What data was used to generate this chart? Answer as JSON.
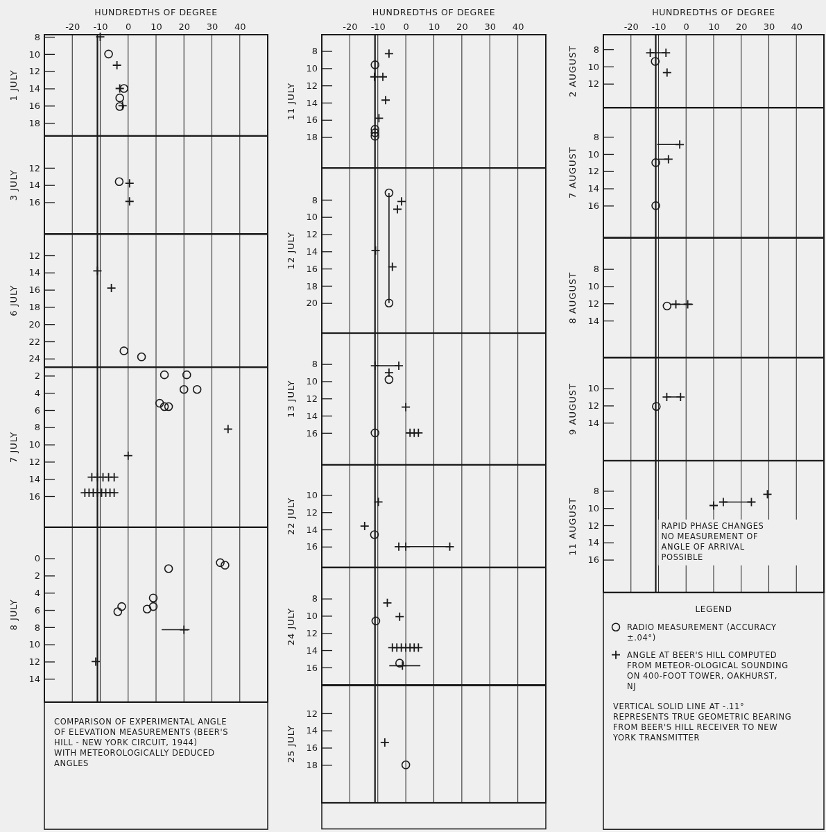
{
  "chart_data": [
    {
      "type": "scatter",
      "ylabel": "1 JULY",
      "xlim": [
        -30,
        50
      ],
      "xticks": [
        -20,
        -10,
        0,
        10,
        20,
        30,
        40
      ],
      "xlabel": "HUNDREDTHS OF DEGREE",
      "ylim": [
        19.5,
        7.75
      ],
      "yticks": [
        8,
        10,
        12,
        14,
        16,
        18
      ],
      "grid": "x",
      "ref_lines": [
        {
          "axis": "x",
          "value": -11,
          "color": "#1a1a1a"
        }
      ],
      "series": [
        {
          "marker": "circle",
          "color": "#1a1a1a",
          "x": [
            -7,
            -1.5,
            -3,
            -3
          ],
          "values": [
            10,
            14,
            15.1,
            16.1
          ]
        },
        {
          "marker": "cross",
          "color": "#1a1a1a",
          "x": [
            -10,
            -4,
            -3,
            -2
          ],
          "values": [
            8,
            11.3,
            14,
            16
          ]
        }
      ]
    },
    {
      "type": "scatter",
      "ylabel": "3 JULY",
      "xlim": [
        -30,
        50
      ],
      "tick_labels": "y",
      "xticks": [
        {
          "value": -20,
          "label": null
        },
        {
          "value": -10,
          "label": null
        },
        {
          "value": 0,
          "label": null
        },
        {
          "value": 10,
          "label": null
        },
        {
          "value": 20,
          "label": null
        },
        {
          "value": 30,
          "label": null
        },
        {
          "value": 40,
          "label": null
        }
      ],
      "ylim": [
        19.7,
        8.3
      ],
      "yticks": [
        12,
        14,
        16
      ],
      "grid": "x",
      "ref_lines": [
        {
          "axis": "x",
          "value": -11,
          "color": "#1a1a1a"
        }
      ],
      "series": [
        {
          "marker": "circle",
          "color": "#1a1a1a",
          "x": [
            -3.2
          ],
          "values": [
            13.6
          ]
        },
        {
          "marker": "cross",
          "color": "#1a1a1a",
          "x": [
            0.5,
            0.5
          ],
          "values": [
            13.8,
            15.9
          ]
        }
      ]
    },
    {
      "type": "scatter",
      "ylabel": "6 JULY",
      "xlim": [
        -30,
        50
      ],
      "tick_labels": "y",
      "xticks": [
        {
          "value": -20,
          "label": null
        },
        {
          "value": -10,
          "label": null
        },
        {
          "value": 0,
          "label": null
        },
        {
          "value": 10,
          "label": null
        },
        {
          "value": 20,
          "label": null
        },
        {
          "value": 30,
          "label": null
        },
        {
          "value": 40,
          "label": null
        }
      ],
      "ylim": [
        25,
        9.5
      ],
      "yticks": [
        12,
        14,
        16,
        18,
        20,
        22,
        24
      ],
      "grid": "x",
      "ref_lines": [
        {
          "axis": "x",
          "value": -11,
          "color": "#1a1a1a"
        }
      ],
      "series": [
        {
          "marker": "circle",
          "color": "#1a1a1a",
          "x": [
            -1.5,
            4.8
          ],
          "values": [
            23.1,
            23.8
          ]
        },
        {
          "marker": "cross",
          "color": "#1a1a1a",
          "x": [
            -11,
            -6
          ],
          "values": [
            13.8,
            15.8
          ]
        }
      ]
    },
    {
      "type": "scatter",
      "ylabel": "7 JULY",
      "xlim": [
        -30,
        50
      ],
      "tick_labels": "y",
      "xticks": [
        {
          "value": -20,
          "label": null
        },
        {
          "value": -10,
          "label": null
        },
        {
          "value": 0,
          "label": null
        },
        {
          "value": 10,
          "label": null
        },
        {
          "value": 20,
          "label": null
        },
        {
          "value": 30,
          "label": null
        },
        {
          "value": 40,
          "label": null
        }
      ],
      "ylim": [
        19.6,
        1
      ],
      "yticks": [
        2,
        4,
        6,
        8,
        10,
        12,
        14,
        16
      ],
      "grid": "x",
      "ref_lines": [
        {
          "axis": "x",
          "value": -11,
          "color": "#1a1a1a"
        }
      ],
      "series": [
        {
          "marker": "circle",
          "color": "#1a1a1a",
          "x": [
            13,
            21,
            20,
            24.7,
            11.3,
            13,
            14.5
          ],
          "values": [
            1.9,
            1.9,
            3.6,
            3.6,
            5.2,
            5.6,
            5.6
          ]
        },
        {
          "marker": "cross",
          "color": "#1a1a1a",
          "x": [
            35.8,
            0,
            -13,
            -11,
            -9,
            -7,
            -5,
            -15.5,
            -14,
            -12.5,
            -11,
            -9.5,
            -8,
            -6.5,
            -5
          ],
          "values": [
            8.2,
            11.3,
            13.8,
            13.8,
            13.8,
            13.8,
            13.8,
            15.6,
            15.6,
            15.6,
            15.6,
            15.6,
            15.6,
            15.6,
            15.6
          ]
        }
      ]
    },
    {
      "type": "scatter",
      "ylabel": "8 JULY",
      "xlim": [
        -30,
        50
      ],
      "tick_labels": "y",
      "xticks": [
        {
          "value": -20,
          "label": null
        },
        {
          "value": -10,
          "label": null
        },
        {
          "value": 0,
          "label": null
        },
        {
          "value": 10,
          "label": null
        },
        {
          "value": 20,
          "label": null
        },
        {
          "value": 30,
          "label": null
        },
        {
          "value": 40,
          "label": null
        }
      ],
      "ylim": [
        16.7,
        -3.6
      ],
      "yticks": [
        0,
        2,
        4,
        6,
        8,
        10,
        12,
        14
      ],
      "grid": "x",
      "ref_lines": [
        {
          "axis": "x",
          "value": -11,
          "color": "#1a1a1a"
        }
      ],
      "annotations": [
        "COMPARISON OF EXPERIMENTAL ANGLE OF ELEVATION MEASUREMENTS (BEER'S HILL - NEW YORK CIRCUIT, 1944) WITH METEOROLOGICALLY DEDUCED ANGLES"
      ],
      "series": [
        {
          "marker": "circle",
          "color": "#1a1a1a",
          "x": [
            33,
            34.7,
            14.5,
            9,
            9,
            6.8,
            -2.3,
            -3.7
          ],
          "values": [
            0.5,
            0.8,
            1.2,
            4.6,
            5.6,
            5.9,
            5.6,
            6.2
          ]
        },
        {
          "marker": "cross",
          "color": "#1a1a1a",
          "x": [
            20,
            -11.6
          ],
          "values": [
            8.3,
            12
          ],
          "xerrors": [
            [
              12,
              22
            ],
            null
          ]
        }
      ]
    },
    {
      "type": "scatter",
      "ylabel": "11 JULY",
      "xlim": [
        -30,
        50
      ],
      "xticks": [
        -20,
        -10,
        0,
        10,
        20,
        30,
        40
      ],
      "xlabel": "HUNDREDTHS OF DEGREE",
      "ylim": [
        21.6,
        6.1
      ],
      "yticks": [
        8,
        10,
        12,
        14,
        16,
        18
      ],
      "grid": "x",
      "ref_lines": [
        {
          "axis": "x",
          "value": -11,
          "color": "#1a1a1a"
        }
      ],
      "series": [
        {
          "marker": "circle",
          "color": "#1a1a1a",
          "x": [
            -11,
            -11,
            -11,
            -11
          ],
          "values": [
            9.6,
            17.1,
            17.5,
            17.9
          ]
        },
        {
          "marker": "cross",
          "color": "#1a1a1a",
          "x": [
            -6,
            -11.2,
            -8.2,
            -7.2,
            -9.6
          ],
          "values": [
            8.3,
            11,
            11,
            13.7,
            15.8
          ]
        }
      ]
    },
    {
      "type": "scatter",
      "ylabel": "12 JULY",
      "xlim": [
        -30,
        50
      ],
      "tick_labels": "y",
      "xticks": [
        {
          "value": -20,
          "label": null
        },
        {
          "value": -10,
          "label": null
        },
        {
          "value": 0,
          "label": null
        },
        {
          "value": 10,
          "label": null
        },
        {
          "value": 20,
          "label": null
        },
        {
          "value": 30,
          "label": null
        },
        {
          "value": 40,
          "label": null
        }
      ],
      "ylim": [
        23.5,
        4.3
      ],
      "yticks": [
        8,
        10,
        12,
        14,
        16,
        18,
        20
      ],
      "grid": "x",
      "ref_lines": [
        {
          "axis": "x",
          "value": -11,
          "color": "#1a1a1a"
        }
      ],
      "series": [
        {
          "type": "line",
          "marker": "none",
          "color": "#1a1a1a",
          "x": [
            -6,
            -6
          ],
          "values": [
            7.2,
            20
          ]
        },
        {
          "marker": "circle",
          "color": "#1a1a1a",
          "x": [
            -6,
            -6
          ],
          "values": [
            7.2,
            20
          ]
        },
        {
          "marker": "cross",
          "color": "#1a1a1a",
          "x": [
            -1.5,
            -3,
            -10.8,
            -4.8
          ],
          "values": [
            8.2,
            9.1,
            13.9,
            15.8
          ]
        }
      ]
    },
    {
      "type": "scatter",
      "ylabel": "13 JULY",
      "xlim": [
        -30,
        50
      ],
      "tick_labels": "y",
      "xticks": [
        {
          "value": -20,
          "label": null
        },
        {
          "value": -10,
          "label": null
        },
        {
          "value": 0,
          "label": null
        },
        {
          "value": 10,
          "label": null
        },
        {
          "value": 20,
          "label": null
        },
        {
          "value": 30,
          "label": null
        },
        {
          "value": 40,
          "label": null
        }
      ],
      "ylim": [
        19.7,
        4.4
      ],
      "yticks": [
        8,
        10,
        12,
        14,
        16
      ],
      "grid": "x",
      "ref_lines": [
        {
          "axis": "x",
          "value": -11,
          "color": "#1a1a1a"
        }
      ],
      "series": [
        {
          "marker": "circle",
          "color": "#1a1a1a",
          "x": [
            -6,
            -11
          ],
          "values": [
            9.8,
            16
          ]
        },
        {
          "marker": "cross",
          "color": "#1a1a1a",
          "x": [
            -11,
            -2.5,
            -6,
            0,
            1.5,
            3,
            4.5
          ],
          "values": [
            8.2,
            8.2,
            9,
            13,
            16,
            16,
            16
          ],
          "xerrors": [
            [
              -11,
              -2.5
            ],
            null,
            null,
            null,
            [
              0,
              4.5
            ],
            null,
            null
          ]
        }
      ]
    },
    {
      "type": "scatter",
      "ylabel": "22 JULY",
      "xlim": [
        -30,
        50
      ],
      "tick_labels": "y",
      "xticks": [
        {
          "value": -20,
          "label": null
        },
        {
          "value": -10,
          "label": null
        },
        {
          "value": 0,
          "label": null
        },
        {
          "value": 10,
          "label": null
        },
        {
          "value": 20,
          "label": null
        },
        {
          "value": 30,
          "label": null
        },
        {
          "value": 40,
          "label": null
        }
      ],
      "ylim": [
        18.4,
        6.5
      ],
      "yticks": [
        10,
        12,
        14,
        16
      ],
      "grid": "x",
      "ref_lines": [
        {
          "axis": "x",
          "value": -11,
          "color": "#1a1a1a"
        }
      ],
      "series": [
        {
          "marker": "circle",
          "color": "#1a1a1a",
          "x": [
            -11.2
          ],
          "values": [
            14.6
          ]
        },
        {
          "marker": "cross",
          "color": "#1a1a1a",
          "x": [
            -9.8,
            -14.7,
            -2.5,
            0,
            15.7
          ],
          "values": [
            10.8,
            13.6,
            16,
            16,
            16
          ],
          "xerrors": [
            null,
            null,
            null,
            [
              0,
              15.7
            ],
            null
          ]
        }
      ]
    },
    {
      "type": "scatter",
      "ylabel": "24 JULY",
      "xlim": [
        -30,
        50
      ],
      "tick_labels": "y",
      "xticks": [
        {
          "value": -20,
          "label": null
        },
        {
          "value": -10,
          "label": null
        },
        {
          "value": 0,
          "label": null
        },
        {
          "value": 10,
          "label": null
        },
        {
          "value": 20,
          "label": null
        },
        {
          "value": 30,
          "label": null
        },
        {
          "value": 40,
          "label": null
        }
      ],
      "ylim": [
        18.1,
        4.4
      ],
      "yticks": [
        8,
        10,
        12,
        14,
        16
      ],
      "grid": "x",
      "ref_lines": [
        {
          "axis": "x",
          "value": -11,
          "color": "#1a1a1a"
        }
      ],
      "series": [
        {
          "marker": "circle",
          "color": "#1a1a1a",
          "x": [
            -10.7,
            -2.2
          ],
          "values": [
            10.6,
            15.5
          ]
        },
        {
          "marker": "cross",
          "color": "#1a1a1a",
          "x": [
            -6.6,
            -2.2,
            -4.8,
            -3.2,
            -1.6,
            0,
            1.5,
            3,
            4.5,
            -1.2
          ],
          "values": [
            8.5,
            10.1,
            13.7,
            13.7,
            13.7,
            13.7,
            13.7,
            13.7,
            13.7,
            15.8
          ],
          "xerrors": [
            null,
            null,
            null,
            null,
            null,
            null,
            null,
            null,
            null,
            [
              -5.9,
              5.2
            ]
          ]
        }
      ]
    },
    {
      "type": "scatter",
      "ylabel": "25 JULY",
      "xlim": [
        -30,
        50
      ],
      "tick_labels": "y",
      "xticks": [
        {
          "value": -20,
          "label": null
        },
        {
          "value": -10,
          "label": null
        },
        {
          "value": 0,
          "label": null
        },
        {
          "value": 10,
          "label": null
        },
        {
          "value": 20,
          "label": null
        },
        {
          "value": 30,
          "label": null
        },
        {
          "value": 40,
          "label": null
        }
      ],
      "ylim": [
        22.4,
        8.7
      ],
      "yticks": [
        12,
        14,
        16,
        18
      ],
      "grid": "x",
      "ref_lines": [
        {
          "axis": "x",
          "value": -11,
          "color": "#1a1a1a"
        }
      ],
      "series": [
        {
          "marker": "circle",
          "color": "#1a1a1a",
          "x": [
            0
          ],
          "values": [
            18
          ]
        },
        {
          "marker": "cross",
          "color": "#1a1a1a",
          "x": [
            -7.5
          ],
          "values": [
            15.4
          ]
        }
      ]
    },
    {
      "type": "scatter",
      "ylabel": "2 AUGUST",
      "xlim": [
        -30,
        50
      ],
      "xticks": [
        -20,
        -10,
        0,
        10,
        20,
        30,
        40
      ],
      "xlabel": "HUNDREDTHS OF DEGREE",
      "ylim": [
        14.8,
        6.3
      ],
      "yticks": [
        8,
        10,
        12
      ],
      "grid": "x",
      "ref_lines": [
        {
          "axis": "x",
          "value": -11,
          "color": "#1a1a1a"
        }
      ],
      "series": [
        {
          "marker": "circle",
          "color": "#1a1a1a",
          "x": [
            -11.2
          ],
          "values": [
            9.4
          ]
        },
        {
          "marker": "cross",
          "color": "#1a1a1a",
          "x": [
            -13,
            -7.3,
            -6.9
          ],
          "values": [
            8.4,
            8.4,
            10.7
          ],
          "xerrors": [
            [
              -13,
              -7.3
            ],
            null,
            null
          ]
        }
      ]
    },
    {
      "type": "scatter",
      "ylabel": "7 AUGUST",
      "xlim": [
        -30,
        50
      ],
      "tick_labels": "y",
      "xticks": [
        {
          "value": -20,
          "label": null
        },
        {
          "value": -10,
          "label": null
        },
        {
          "value": 0,
          "label": null
        },
        {
          "value": 10,
          "label": null
        },
        {
          "value": 20,
          "label": null
        },
        {
          "value": 30,
          "label": null
        },
        {
          "value": 40,
          "label": null
        }
      ],
      "ylim": [
        19.7,
        4.6
      ],
      "yticks": [
        8,
        10,
        12,
        14,
        16
      ],
      "grid": "x",
      "ref_lines": [
        {
          "axis": "x",
          "value": -11,
          "color": "#1a1a1a"
        }
      ],
      "series": [
        {
          "marker": "circle",
          "color": "#1a1a1a",
          "x": [
            -11,
            -11
          ],
          "values": [
            11,
            16
          ]
        },
        {
          "marker": "cross",
          "color": "#1a1a1a",
          "x": [
            -2.3,
            -6.4
          ],
          "values": [
            8.9,
            10.6
          ],
          "xerrors": [
            [
              -10.5,
              -2.3
            ],
            [
              -10,
              -6.4
            ]
          ]
        }
      ]
    },
    {
      "type": "scatter",
      "ylabel": "8 AUGUST",
      "xlim": [
        -30,
        50
      ],
      "tick_labels": "y",
      "xticks": [
        {
          "value": -20,
          "label": null
        },
        {
          "value": -10,
          "label": null
        },
        {
          "value": 0,
          "label": null
        },
        {
          "value": 10,
          "label": null
        },
        {
          "value": 20,
          "label": null
        },
        {
          "value": 30,
          "label": null
        },
        {
          "value": 40,
          "label": null
        }
      ],
      "ylim": [
        18.3,
        4.4
      ],
      "yticks": [
        8,
        10,
        12,
        14
      ],
      "grid": "x",
      "ref_lines": [
        {
          "axis": "x",
          "value": -11,
          "color": "#1a1a1a"
        }
      ],
      "series": [
        {
          "marker": "circle",
          "color": "#1a1a1a",
          "x": [
            -6.9
          ],
          "values": [
            12.3
          ]
        },
        {
          "marker": "cross",
          "color": "#1a1a1a",
          "x": [
            -3.7,
            0.6
          ],
          "values": [
            12.1,
            12.1
          ],
          "xerrors": [
            [
              -5.5,
              2.5
            ],
            null
          ]
        }
      ]
    },
    {
      "type": "scatter",
      "ylabel": "9 AUGUST",
      "xlim": [
        -30,
        50
      ],
      "tick_labels": "y",
      "xticks": [
        {
          "value": -20,
          "label": null
        },
        {
          "value": -10,
          "label": null
        },
        {
          "value": 0,
          "label": null
        },
        {
          "value": 10,
          "label": null
        },
        {
          "value": 20,
          "label": null
        },
        {
          "value": 30,
          "label": null
        },
        {
          "value": 40,
          "label": null
        }
      ],
      "ylim": [
        18.4,
        6.4
      ],
      "yticks": [
        10,
        12,
        14
      ],
      "grid": "x",
      "ref_lines": [
        {
          "axis": "x",
          "value": -11,
          "color": "#1a1a1a"
        }
      ],
      "series": [
        {
          "marker": "circle",
          "color": "#1a1a1a",
          "x": [
            -10.8
          ],
          "values": [
            12.1
          ]
        },
        {
          "marker": "cross",
          "color": "#1a1a1a",
          "x": [
            -7,
            -2
          ],
          "values": [
            11,
            11
          ],
          "xerrors": [
            [
              -7,
              -2
            ],
            null
          ]
        }
      ]
    },
    {
      "type": "scatter",
      "ylabel": "11 AUGUST",
      "xlim": [
        -30,
        50
      ],
      "tick_labels": "y",
      "xticks": [
        {
          "value": -20,
          "label": null
        },
        {
          "value": -10,
          "label": null
        },
        {
          "value": 0,
          "label": null
        },
        {
          "value": 10,
          "label": null
        },
        {
          "value": 20,
          "label": null
        },
        {
          "value": 30,
          "label": null
        },
        {
          "value": 40,
          "label": null
        }
      ],
      "ylim": [
        19.8,
        4.5
      ],
      "yticks": [
        8,
        10,
        12,
        14,
        16
      ],
      "grid": "x",
      "legend": "bottom",
      "legend_title": "LEGEND",
      "ref_lines": [
        {
          "axis": "x",
          "value": -11,
          "color": "#1a1a1a"
        }
      ],
      "annotations": [
        "RAPID PHASE CHANGES NO MEASUREMENT OF ANGLE OF ARRIVAL POSSIBLE",
        "VERTICAL SOLID LINE AT -.11° REPRESENTS TRUE GEOMETRIC BEARING FROM BEER'S HILL RECEIVER TO NEW YORK TRANSMITTER"
      ],
      "series": [
        {
          "name": "RADIO MEASUREMENT (ACCURACY ±.04°)",
          "marker": "circle",
          "color": "#1a1a1a"
        },
        {
          "name": "ANGLE AT BEER'S HILL COMPUTED FROM METEOR-OLOGICAL SOUNDING ON 400-FOOT TOWER, OAKHURST, NJ",
          "marker": "cross",
          "color": "#1a1a1a",
          "x": [
            10,
            13.5,
            23.7,
            29.5
          ],
          "values": [
            9.7,
            9.3,
            9.3,
            8.4
          ],
          "xerrors": [
            null,
            [
              13.5,
              23.7
            ],
            null,
            null
          ]
        }
      ]
    }
  ]
}
